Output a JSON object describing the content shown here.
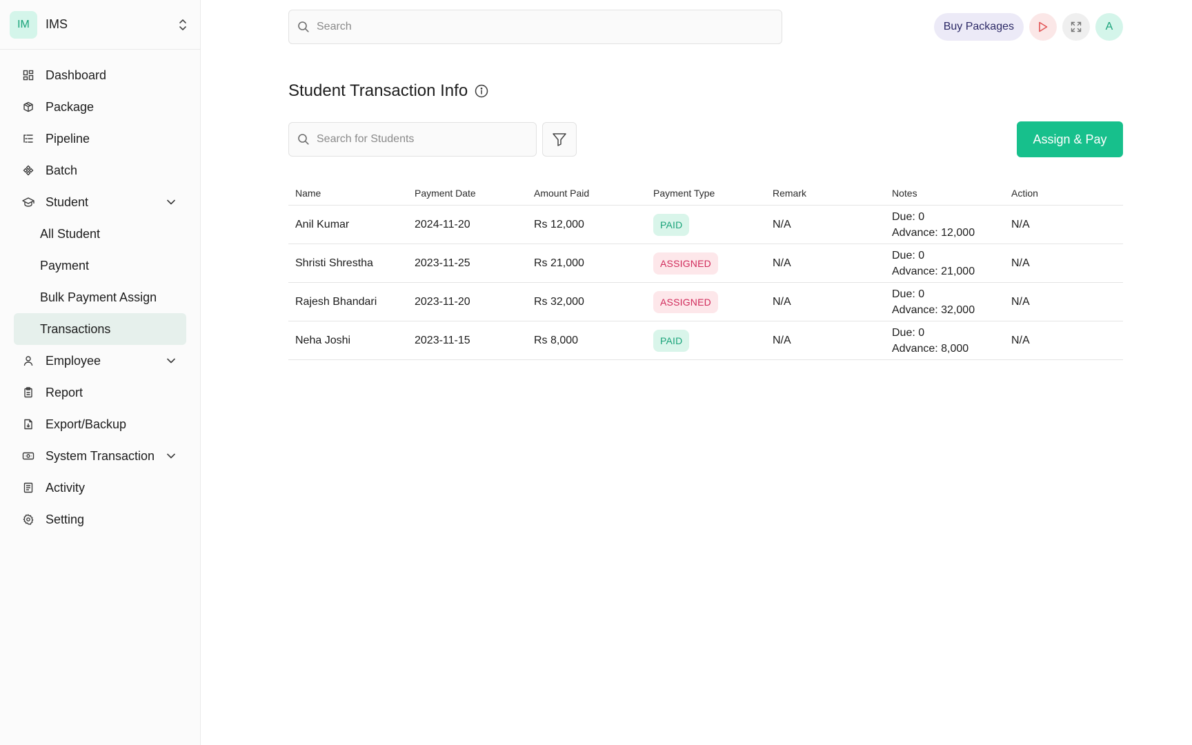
{
  "brand": {
    "badge": "IM",
    "name": "IMS"
  },
  "sidebar": {
    "items": [
      {
        "label": "Dashboard",
        "icon": "dashboard-icon"
      },
      {
        "label": "Package",
        "icon": "package-icon"
      },
      {
        "label": "Pipeline",
        "icon": "pipeline-icon"
      },
      {
        "label": "Batch",
        "icon": "batch-icon"
      },
      {
        "label": "Student",
        "icon": "student-icon",
        "expanded": true,
        "children": [
          {
            "label": "All Student"
          },
          {
            "label": "Payment"
          },
          {
            "label": "Bulk Payment Assign"
          },
          {
            "label": "Transactions",
            "active": true
          }
        ]
      },
      {
        "label": "Employee",
        "icon": "user-icon"
      },
      {
        "label": "Report",
        "icon": "clipboard-icon"
      },
      {
        "label": "Export/Backup",
        "icon": "export-icon"
      },
      {
        "label": "System Transaction",
        "icon": "money-icon"
      },
      {
        "label": "Activity",
        "icon": "activity-icon"
      },
      {
        "label": "Setting",
        "icon": "gear-icon"
      }
    ]
  },
  "topbar": {
    "search_placeholder": "Search",
    "buy_label": "Buy Packages",
    "avatar_initial": "A"
  },
  "main": {
    "title": "Student Transaction Info",
    "search_placeholder": "Search for Students",
    "assign_label": "Assign & Pay"
  },
  "table": {
    "headers": [
      "Name",
      "Payment Date",
      "Amount Paid",
      "Payment Type",
      "Remark",
      "Notes",
      "Action"
    ],
    "rows": [
      {
        "name": "Anil Kumar",
        "date": "2024-11-20",
        "amount": "Rs 12,000",
        "type": "PAID",
        "remark": "N/A",
        "due": "Due: 0",
        "advance": "Advance: 12,000",
        "action": "N/A"
      },
      {
        "name": "Shristi Shrestha",
        "date": "2023-11-25",
        "amount": "Rs 21,000",
        "type": "ASSIGNED",
        "remark": "N/A",
        "due": "Due: 0",
        "advance": "Advance: 21,000",
        "action": "N/A"
      },
      {
        "name": "Rajesh Bhandari",
        "date": "2023-11-20",
        "amount": "Rs 32,000",
        "type": "ASSIGNED",
        "remark": "N/A",
        "due": "Due: 0",
        "advance": "Advance: 32,000",
        "action": "N/A"
      },
      {
        "name": "Neha Joshi",
        "date": "2023-11-15",
        "amount": "Rs 8,000",
        "type": "PAID",
        "remark": "N/A",
        "due": "Due: 0",
        "advance": "Advance: 8,000",
        "action": "N/A"
      }
    ]
  },
  "colors": {
    "accent": "#17c08c",
    "paid_bg": "#d9f5ea",
    "paid_fg": "#1aa37a",
    "assigned_bg": "#fde7ea",
    "assigned_fg": "#d02a5a"
  }
}
